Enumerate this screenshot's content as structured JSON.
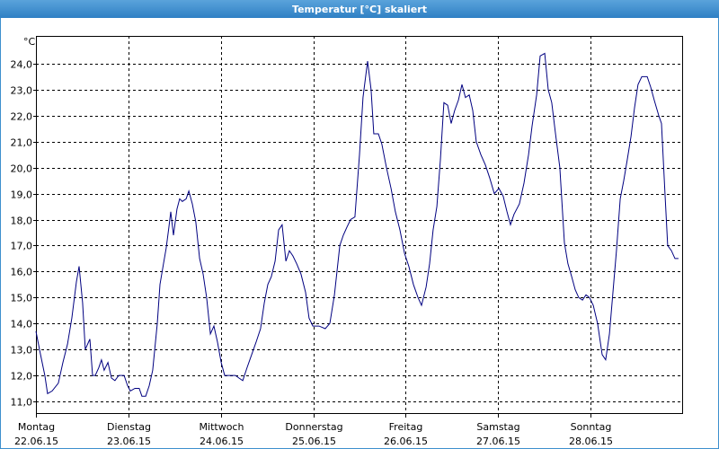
{
  "chart_data": {
    "type": "line",
    "title": "Temperatur [°C] skaliert",
    "ylabel": "°C",
    "color": "#000080",
    "grid": true,
    "xlim": [
      0,
      168
    ],
    "xticks": [
      {
        "value": 0,
        "label": "Montag",
        "sublabel": "22.06.15"
      },
      {
        "value": 24,
        "label": "Dienstag",
        "sublabel": "23.06.15"
      },
      {
        "value": 48,
        "label": "Mittwoch",
        "sublabel": "24.06.15"
      },
      {
        "value": 72,
        "label": "Donnerstag",
        "sublabel": "25.06.15"
      },
      {
        "value": 96,
        "label": "Freitag",
        "sublabel": "26.06.15"
      },
      {
        "value": 120,
        "label": "Samstag",
        "sublabel": "27.06.15"
      },
      {
        "value": 144,
        "label": "Sonntag",
        "sublabel": "28.06.15"
      }
    ],
    "ylim": [
      10.55,
      25.07
    ],
    "yticks": [
      {
        "value": 11,
        "label": "11,0"
      },
      {
        "value": 12,
        "label": "12,0"
      },
      {
        "value": 13,
        "label": "13,0"
      },
      {
        "value": 14,
        "label": "14,0"
      },
      {
        "value": 15,
        "label": "15,0"
      },
      {
        "value": 16,
        "label": "16,0"
      },
      {
        "value": 17,
        "label": "17,0"
      },
      {
        "value": 18,
        "label": "18,0"
      },
      {
        "value": 19,
        "label": "19,0"
      },
      {
        "value": 20,
        "label": "20,0"
      },
      {
        "value": 21,
        "label": "21,0"
      },
      {
        "value": 22,
        "label": "22,0"
      },
      {
        "value": 23,
        "label": "23,0"
      },
      {
        "value": 24,
        "label": "24,0"
      }
    ],
    "x": [
      0,
      1.2,
      2.3,
      3,
      4.2,
      5.8,
      7,
      8.2,
      9.3,
      10.5,
      11.2,
      12.1,
      12.8,
      14,
      14.7,
      15.4,
      16.3,
      17,
      17.7,
      18.7,
      19.6,
      20.5,
      21.5,
      22.9,
      23.8,
      24.5,
      25.7,
      26.8,
      27.5,
      28.5,
      29.4,
      30.3,
      31.5,
      32.2,
      33.1,
      33.8,
      34.5,
      35,
      35.7,
      36.6,
      37.3,
      38,
      39,
      39.7,
      40.6,
      41.5,
      42.5,
      43.4,
      44.3,
      45.3,
      46.2,
      47.1,
      48.1,
      49,
      50.4,
      51.8,
      52.7,
      53.7,
      54.8,
      56,
      57.2,
      58.3,
      59.3,
      60.2,
      61.1,
      62.1,
      63,
      63.9,
      64.9,
      65.8,
      66.7,
      67.7,
      68.8,
      70,
      70.9,
      71.9,
      73.5,
      75.1,
      76.3,
      77.5,
      78.9,
      79.8,
      80.7,
      81.7,
      82.8,
      84,
      84.9,
      86.1,
      87,
      87.7,
      88.9,
      89.8,
      91,
      92.2,
      93.3,
      94.5,
      95.7,
      96.8,
      98,
      99.2,
      100.1,
      101.3,
      102.2,
      103.1,
      104.1,
      105,
      105.9,
      106.9,
      107.8,
      108.7,
      109.7,
      110.6,
      111.5,
      112.5,
      113.4,
      114.3,
      115.5,
      116.7,
      117.8,
      119,
      120.2,
      121.3,
      122.3,
      123.2,
      124.1,
      125.5,
      126.7,
      127.9,
      128.8,
      130,
      130.9,
      132.1,
      133,
      133.9,
      134.9,
      136,
      137.2,
      138.1,
      139.1,
      140,
      140.9,
      141.9,
      142.8,
      143.7,
      144.7,
      145.8,
      147,
      147.9,
      148.9,
      149.8,
      150.7,
      151.7,
      152.6,
      153.5,
      154.5,
      155.4,
      156.3,
      157.3,
      158.7,
      159.6,
      160.5,
      161.7,
      162.4,
      163.3,
      164,
      165,
      165.9,
      166.8
    ],
    "values": [
      13.7,
      12.8,
      12.0,
      11.3,
      11.4,
      11.7,
      12.5,
      13.2,
      14.2,
      15.6,
      16.2,
      14.8,
      13.0,
      13.4,
      12.0,
      12.0,
      12.3,
      12.6,
      12.2,
      12.5,
      11.9,
      11.8,
      12.0,
      12.0,
      11.6,
      11.4,
      11.5,
      11.5,
      11.2,
      11.2,
      11.6,
      12.2,
      14.0,
      15.5,
      16.3,
      16.9,
      17.7,
      18.3,
      17.4,
      18.4,
      18.8,
      18.7,
      18.8,
      19.1,
      18.6,
      17.9,
      16.5,
      15.9,
      15.0,
      13.6,
      13.9,
      13.3,
      12.5,
      12.0,
      12.0,
      12.0,
      11.9,
      11.8,
      12.3,
      12.8,
      13.3,
      13.8,
      14.8,
      15.5,
      15.8,
      16.4,
      17.6,
      17.8,
      16.4,
      16.8,
      16.6,
      16.3,
      15.9,
      15.2,
      14.2,
      13.9,
      13.9,
      13.8,
      14.0,
      15.1,
      17.0,
      17.4,
      17.7,
      18.0,
      18.1,
      20.5,
      22.7,
      24.1,
      23.0,
      21.3,
      21.3,
      20.9,
      20.0,
      19.2,
      18.3,
      17.6,
      16.7,
      16.2,
      15.5,
      15.0,
      14.7,
      15.4,
      16.3,
      17.6,
      18.5,
      20.3,
      22.5,
      22.4,
      21.7,
      22.2,
      22.6,
      23.2,
      22.7,
      22.8,
      22.2,
      21.0,
      20.5,
      20.1,
      19.6,
      19.0,
      19.2,
      18.9,
      18.3,
      17.8,
      18.2,
      18.6,
      19.4,
      20.5,
      21.6,
      22.8,
      24.3,
      24.4,
      23.0,
      22.5,
      21.3,
      20.0,
      17.1,
      16.3,
      15.8,
      15.3,
      15.0,
      14.9,
      15.1,
      15.0,
      14.7,
      14.0,
      12.8,
      12.6,
      13.6,
      15.2,
      16.8,
      18.8,
      19.5,
      20.3,
      21.2,
      22.3,
      23.2,
      23.5,
      23.5,
      23.1,
      22.6,
      22.0,
      21.7,
      19.0,
      17.0,
      16.8,
      16.5,
      16.5
    ]
  }
}
